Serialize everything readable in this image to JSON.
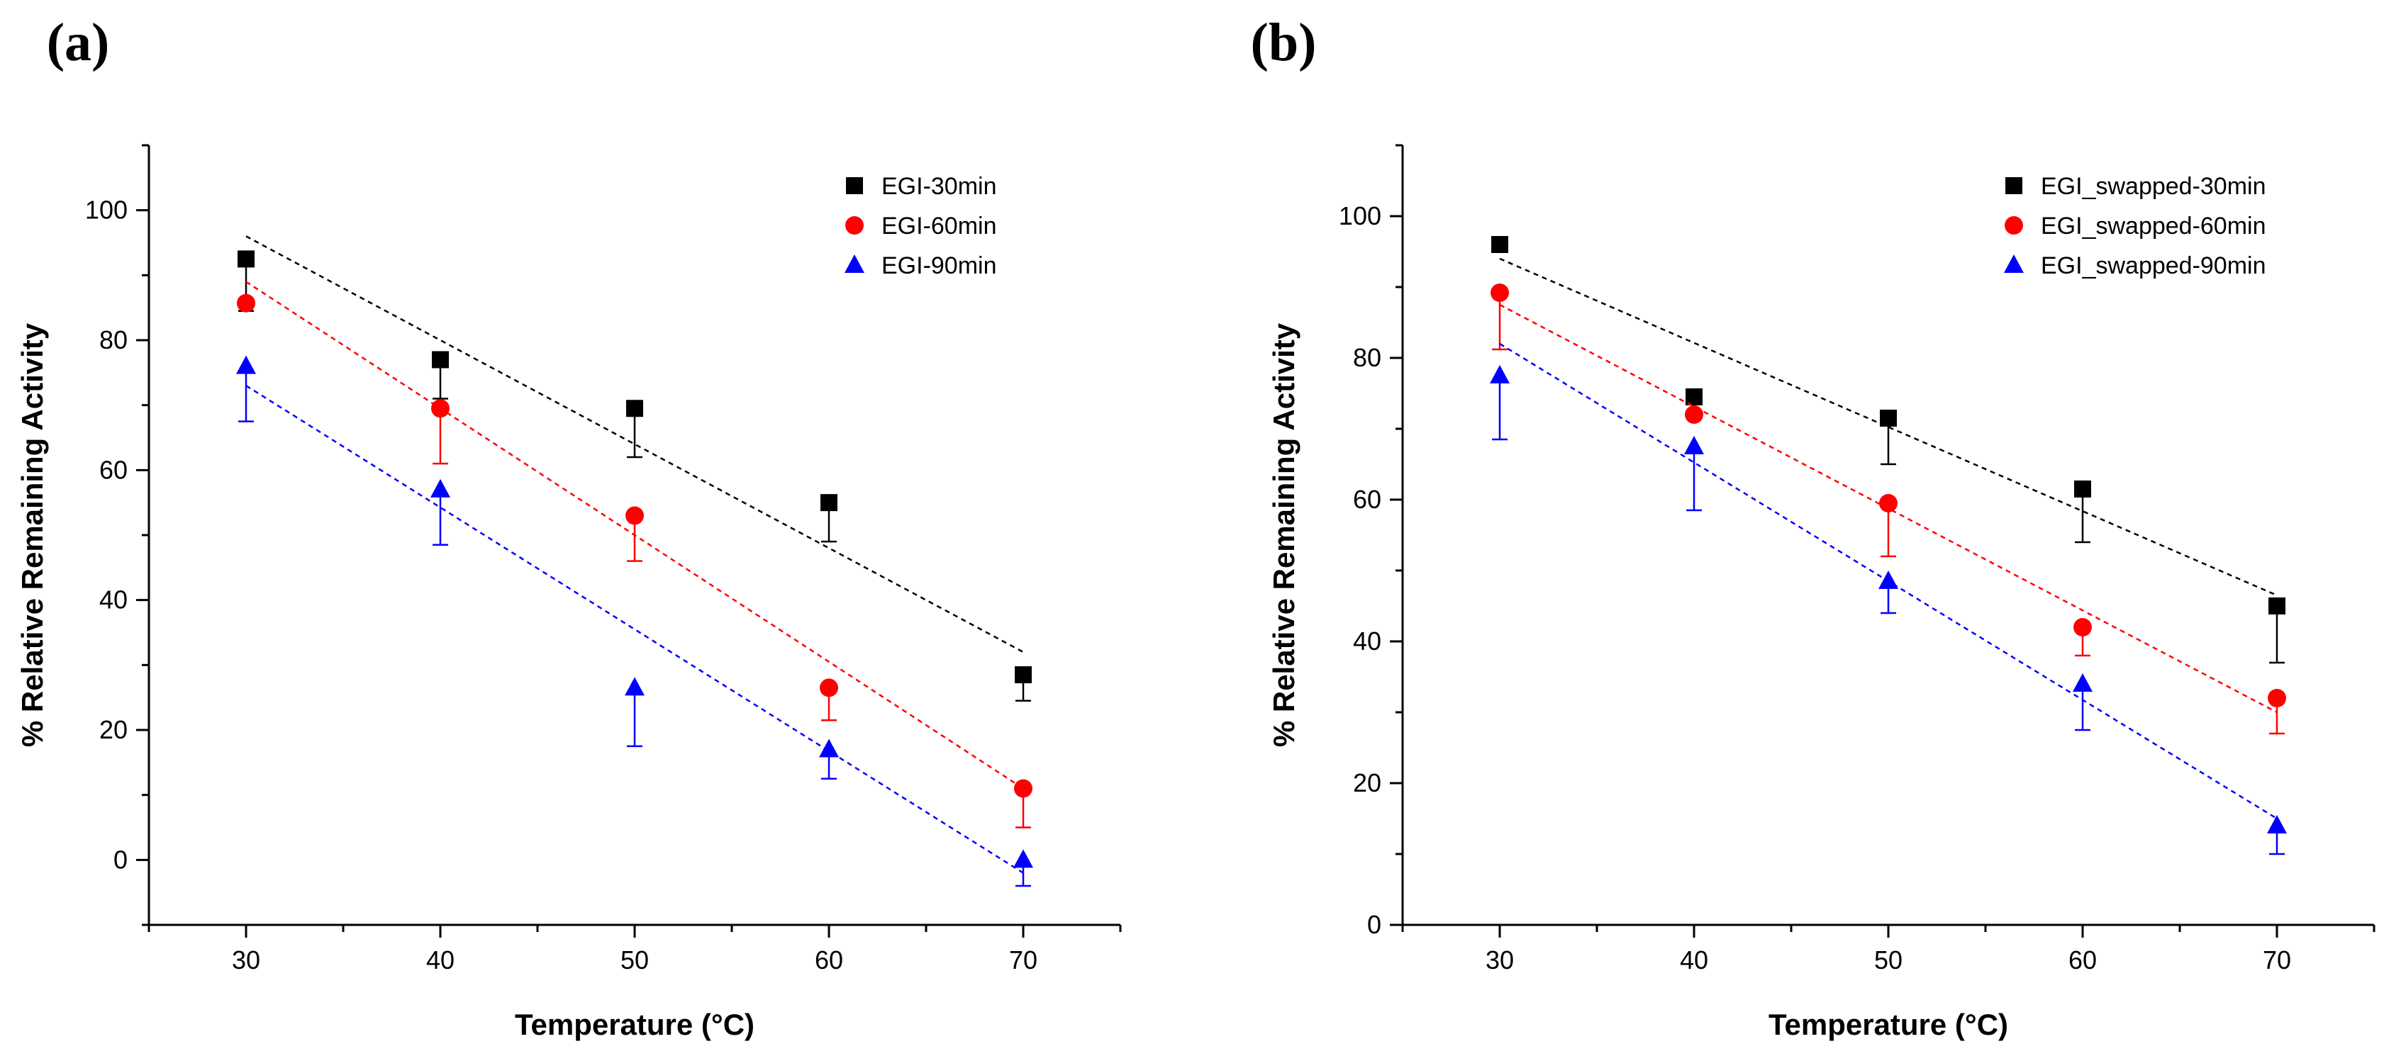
{
  "chart_data": [
    {
      "type": "scatter",
      "panel_label": "(a)",
      "title": "",
      "xlabel": "Temperature (°C)",
      "ylabel": "% Relative Remaining Activity",
      "xlim": [
        25,
        75
      ],
      "ylim": [
        -10,
        110
      ],
      "xticks": [
        30,
        40,
        50,
        60,
        70
      ],
      "yticks": [
        0,
        20,
        40,
        60,
        80,
        100
      ],
      "grid": false,
      "legend_position": "top-right",
      "x": [
        30,
        40,
        50,
        60,
        70
      ],
      "series": [
        {
          "name": "EGI-30min",
          "marker": "square",
          "color": "#000000",
          "values": [
            92.5,
            77,
            69.5,
            55,
            28.5
          ],
          "error_lower": [
            8,
            6,
            7.5,
            6,
            4
          ],
          "fit": {
            "x": [
              30,
              70
            ],
            "y": [
              96,
              32
            ]
          }
        },
        {
          "name": "EGI-60min",
          "marker": "circle",
          "color": "#ff0000",
          "values": [
            85.7,
            69.5,
            53,
            26.5,
            11
          ],
          "error_lower": [
            0,
            8.5,
            7,
            5,
            6
          ],
          "fit": {
            "x": [
              30,
              70
            ],
            "y": [
              89,
              11
            ]
          }
        },
        {
          "name": "EGI-90min",
          "marker": "triangle",
          "color": "#0000ff",
          "values": [
            76,
            57,
            26.5,
            17,
            0
          ],
          "error_lower": [
            8.5,
            8.5,
            9,
            4.5,
            4
          ],
          "fit": {
            "x": [
              30,
              70
            ],
            "y": [
              73,
              -2
            ]
          }
        }
      ]
    },
    {
      "type": "scatter",
      "panel_label": "(b)",
      "title": "",
      "xlabel": "Temperature (°C)",
      "ylabel": "% Relative Remaining Activity",
      "xlim": [
        25,
        75
      ],
      "ylim": [
        0,
        110
      ],
      "xticks": [
        30,
        40,
        50,
        60,
        70
      ],
      "yticks": [
        0,
        20,
        40,
        60,
        80,
        100
      ],
      "grid": false,
      "legend_position": "top-right",
      "x": [
        30,
        40,
        50,
        60,
        70
      ],
      "series": [
        {
          "name": "EGI_swapped-30min",
          "marker": "square",
          "color": "#000000",
          "values": [
            96,
            74.5,
            71.5,
            61.5,
            45
          ],
          "error_lower": [
            0,
            0,
            6.5,
            7.5,
            8
          ],
          "fit": {
            "x": [
              30,
              70
            ],
            "y": [
              94,
              46.5
            ]
          }
        },
        {
          "name": "EGI_swapped-60min",
          "marker": "circle",
          "color": "#ff0000",
          "values": [
            89.2,
            72,
            59.5,
            42,
            32
          ],
          "error_lower": [
            8,
            0,
            7.5,
            4,
            5
          ],
          "fit": {
            "x": [
              30,
              70
            ],
            "y": [
              87.5,
              30
            ]
          }
        },
        {
          "name": "EGI_swapped-90min",
          "marker": "triangle",
          "color": "#0000ff",
          "values": [
            77.5,
            67.5,
            48.5,
            34,
            14
          ],
          "error_lower": [
            9,
            9,
            4.5,
            6.5,
            4
          ],
          "fit": {
            "x": [
              30,
              70
            ],
            "y": [
              82,
              15
            ]
          }
        }
      ]
    }
  ]
}
